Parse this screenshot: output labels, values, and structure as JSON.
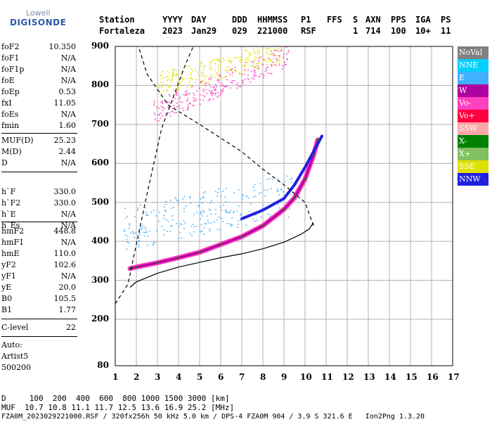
{
  "logo": {
    "line1": "Lowell",
    "line2": "DIGISONDE"
  },
  "header": {
    "labels": [
      "Station",
      "YYYY",
      "DAY",
      "DDD",
      "HHMMSS",
      "P1",
      "FFS",
      "S",
      "AXN",
      "PPS",
      "IGA",
      "PS"
    ],
    "values": [
      "Fortaleza",
      "2023",
      "Jan29",
      "029",
      "221000",
      "RSF",
      "1",
      "714",
      "100",
      "10+",
      "11"
    ]
  },
  "params": {
    "group1": [
      {
        "k": "foF2",
        "v": "10.350"
      },
      {
        "k": "foF1",
        "v": "N/A"
      },
      {
        "k": "foF1p",
        "v": "N/A"
      },
      {
        "k": "foE",
        "v": "N/A"
      },
      {
        "k": "foEp",
        "v": "0.53"
      },
      {
        "k": "fxI",
        "v": "11.05"
      },
      {
        "k": "foEs",
        "v": "N/A"
      },
      {
        "k": "fmin",
        "v": "1.60"
      }
    ],
    "group2": [
      {
        "k": "MUF(D)",
        "v": "25.23"
      },
      {
        "k": "M(D)",
        "v": "2.44"
      },
      {
        "k": "D",
        "v": "N/A"
      }
    ],
    "group3": [
      {
        "k": "h`F",
        "v": "330.0"
      },
      {
        "k": "h`F2",
        "v": "330.0"
      },
      {
        "k": "h`E",
        "v": "N/A"
      },
      {
        "k": "h`Es",
        "v": "N/A"
      }
    ],
    "group4": [
      {
        "k": "hmF2",
        "v": "448.8"
      },
      {
        "k": "hmF1",
        "v": "N/A"
      },
      {
        "k": "hmE",
        "v": "110.0"
      },
      {
        "k": "yF2",
        "v": "102.6"
      },
      {
        "k": "yF1",
        "v": "N/A"
      },
      {
        "k": "yE",
        "v": "20.0"
      },
      {
        "k": "B0",
        "v": "105.5"
      },
      {
        "k": "B1",
        "v": "1.77"
      }
    ],
    "group5": [
      {
        "k": "C-level",
        "v": "22"
      }
    ],
    "auto": [
      "Auto:",
      "Artist5",
      "500200"
    ]
  },
  "legend": [
    {
      "label": "NoVal",
      "color": "#808080"
    },
    {
      "label": "NNE",
      "color": "#00d0ff"
    },
    {
      "label": "E",
      "color": "#40b0ff"
    },
    {
      "label": "W",
      "color": "#b000a0"
    },
    {
      "label": "Vo-",
      "color": "#ff40c0"
    },
    {
      "label": "Vo+",
      "color": "#ff0040"
    },
    {
      "label": "SSW",
      "color": "#ffa8a8"
    },
    {
      "label": "X-",
      "color": "#008000"
    },
    {
      "label": "X+",
      "color": "#80c060"
    },
    {
      "label": "SSE",
      "color": "#e0e000"
    },
    {
      "label": "NNW",
      "color": "#2020e0"
    }
  ],
  "bottom": {
    "line1": "D     100  200  400  600  800 1000 1500 3000 [km]",
    "line2": "MUF  10.7 10.8 11.1 11.7 12.5 13.6 16.9 25.2 [MHz]",
    "line3": "FZA0M_2023029221000.RSF / 320fx256h 50 kHz 5.0 km / DPS-4 FZA0M 904 / 3.9 S 321.6 E   Ion2Png 1.3.20"
  },
  "chart_data": {
    "type": "scatter",
    "xlim": [
      1,
      17
    ],
    "ylim": [
      80,
      900
    ],
    "xticks": [
      "1",
      "2",
      "3",
      "4",
      "5",
      "6",
      "7",
      "8",
      "9",
      "10",
      "11",
      "12",
      "13",
      "14",
      "15",
      "16",
      "17"
    ],
    "yticks": [
      "900",
      "800",
      "700",
      "600",
      "500",
      "400",
      "300",
      "200",
      "80"
    ],
    "grid": true,
    "profile_solid": [
      [
        1.7,
        282
      ],
      [
        2,
        296
      ],
      [
        3,
        318
      ],
      [
        4,
        334
      ],
      [
        5,
        346
      ],
      [
        6,
        358
      ],
      [
        7,
        368
      ],
      [
        8,
        381
      ],
      [
        9,
        398
      ],
      [
        9.8,
        418
      ],
      [
        10.2,
        432
      ],
      [
        10.4,
        448
      ]
    ],
    "profile_dashed": [
      [
        1,
        240
      ],
      [
        1.6,
        290
      ],
      [
        2.5,
        520
      ],
      [
        3.2,
        690
      ],
      [
        4.3,
        850
      ],
      [
        4.7,
        900
      ]
    ],
    "profile_dashed2": [
      [
        10.4,
        440
      ],
      [
        10,
        500
      ],
      [
        9,
        545
      ],
      [
        8,
        585
      ],
      [
        7,
        630
      ],
      [
        5,
        700
      ],
      [
        3.5,
        750
      ],
      [
        2.5,
        830
      ],
      [
        2.1,
        900
      ]
    ],
    "trace_o": [
      [
        1.7,
        330
      ],
      [
        2,
        334
      ],
      [
        3,
        345
      ],
      [
        4,
        358
      ],
      [
        5,
        372
      ],
      [
        6,
        392
      ],
      [
        7,
        412
      ],
      [
        8,
        440
      ],
      [
        9,
        482
      ],
      [
        9.5,
        512
      ],
      [
        10,
        560
      ],
      [
        10.4,
        620
      ],
      [
        10.6,
        660
      ]
    ],
    "trace_x": [
      [
        7,
        458
      ],
      [
        8,
        480
      ],
      [
        9,
        510
      ],
      [
        9.5,
        545
      ],
      [
        10,
        590
      ],
      [
        10.5,
        640
      ],
      [
        10.8,
        670
      ]
    ],
    "echo_bands": [
      {
        "x0": 1.4,
        "x1": 9.6,
        "y0": 392,
        "y1": 555,
        "color": "#40b0ff"
      },
      {
        "x0": 2.8,
        "x1": 9.2,
        "y0": 690,
        "y1": 900,
        "color": "#ff40c0"
      },
      {
        "x0": 3.0,
        "x1": 8.8,
        "y0": 780,
        "y1": 900,
        "color": "#e0e000"
      }
    ]
  }
}
